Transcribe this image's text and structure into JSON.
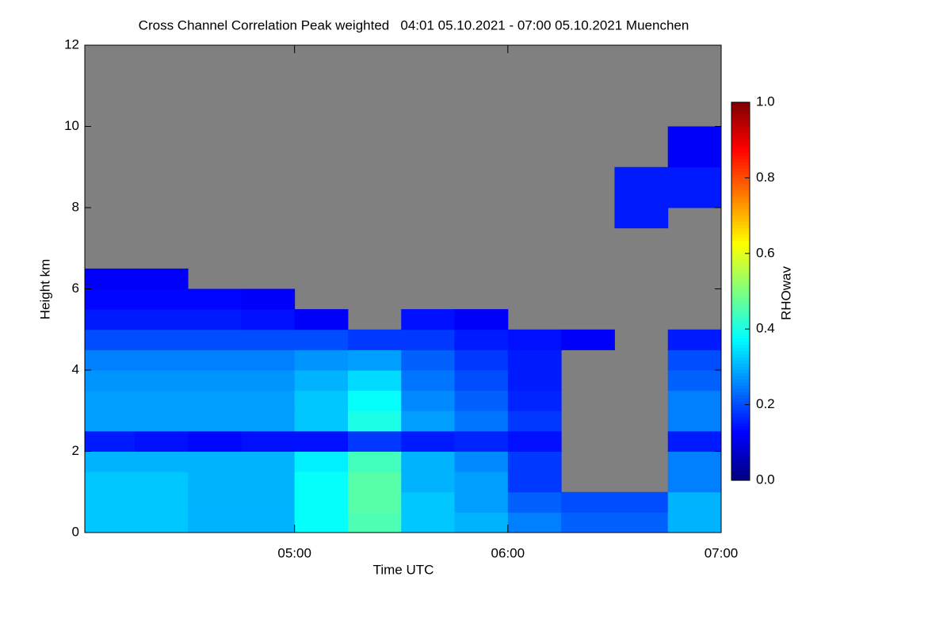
{
  "chart_data": {
    "type": "heatmap",
    "title": "Cross Channel Correlation Peak weighted   04:01 05.10.2021 - 07:00 05.10.2021 Muenchen",
    "x_label": "Time UTC",
    "y_label": "Height km",
    "colorbar_label": "RHOwav",
    "xlim": [
      4.0167,
      7.0
    ],
    "xticks": [
      {
        "value": 5,
        "label": "05:00"
      },
      {
        "value": 6,
        "label": "06:00"
      },
      {
        "value": 7,
        "label": "07:00"
      }
    ],
    "ylim": [
      0,
      12
    ],
    "yticks": [
      0,
      2,
      4,
      6,
      8,
      10,
      12
    ],
    "clim": [
      0,
      1
    ],
    "cticks": [
      {
        "value": 0,
        "label": "0.0"
      },
      0.2,
      0.4,
      0.6,
      0.8,
      {
        "value": 1,
        "label": "1.0"
      }
    ],
    "colormap": "jet",
    "missing_color": "#808080",
    "xbins": [
      4.0167,
      4.25,
      4.5,
      4.75,
      5.0,
      5.25,
      5.5,
      5.75,
      6.0,
      6.25,
      6.5,
      6.75,
      7.0
    ],
    "ybins": [
      0,
      0.5,
      1,
      1.5,
      2,
      2.5,
      3,
      3.5,
      4,
      4.5,
      5,
      5.5,
      6,
      6.5,
      7,
      7.5,
      8,
      9,
      10,
      11,
      12
    ],
    "z": [
      [
        0.32,
        0.32,
        0.3,
        0.3,
        0.38,
        0.45,
        0.32,
        0.3,
        0.25,
        0.22,
        0.22,
        0.3
      ],
      [
        0.32,
        0.32,
        0.3,
        0.3,
        0.38,
        0.46,
        0.32,
        0.28,
        0.22,
        0.2,
        0.2,
        0.3
      ],
      [
        0.32,
        0.32,
        0.3,
        0.3,
        0.38,
        0.46,
        0.3,
        0.28,
        0.18,
        null,
        null,
        0.25
      ],
      [
        0.3,
        0.3,
        0.3,
        0.3,
        0.36,
        0.44,
        0.3,
        0.26,
        0.18,
        null,
        null,
        0.25
      ],
      [
        0.15,
        0.14,
        0.13,
        0.14,
        0.14,
        0.18,
        0.15,
        0.16,
        0.14,
        null,
        null,
        0.15
      ],
      [
        0.28,
        0.28,
        0.28,
        0.28,
        0.32,
        0.4,
        0.28,
        0.24,
        0.18,
        null,
        null,
        0.25
      ],
      [
        0.28,
        0.28,
        0.28,
        0.28,
        0.32,
        0.38,
        0.26,
        0.22,
        0.16,
        null,
        null,
        0.25
      ],
      [
        0.27,
        0.27,
        0.27,
        0.27,
        0.3,
        0.34,
        0.24,
        0.2,
        0.15,
        null,
        null,
        0.22
      ],
      [
        0.25,
        0.25,
        0.25,
        0.25,
        0.27,
        0.28,
        0.22,
        0.18,
        0.15,
        null,
        null,
        0.2
      ],
      [
        0.2,
        0.2,
        0.2,
        0.2,
        0.2,
        0.18,
        0.18,
        0.15,
        0.14,
        0.12,
        null,
        0.15
      ],
      [
        0.15,
        0.15,
        0.15,
        0.14,
        0.12,
        null,
        0.14,
        0.12,
        null,
        null,
        null,
        null
      ],
      [
        0.13,
        0.13,
        0.13,
        0.12,
        null,
        null,
        null,
        null,
        null,
        null,
        null,
        null
      ],
      [
        0.12,
        0.12,
        null,
        null,
        null,
        null,
        null,
        null,
        null,
        null,
        null,
        null
      ],
      [
        null,
        null,
        null,
        null,
        null,
        null,
        null,
        null,
        null,
        null,
        null,
        null
      ],
      [
        null,
        null,
        null,
        null,
        null,
        null,
        null,
        null,
        null,
        null,
        null,
        null
      ],
      [
        null,
        null,
        null,
        null,
        null,
        null,
        null,
        null,
        null,
        null,
        0.15,
        null
      ],
      [
        null,
        null,
        null,
        null,
        null,
        null,
        null,
        null,
        null,
        null,
        0.15,
        0.15
      ],
      [
        null,
        null,
        null,
        null,
        null,
        null,
        null,
        null,
        null,
        null,
        null,
        0.12
      ],
      [
        null,
        null,
        null,
        null,
        null,
        null,
        null,
        null,
        null,
        null,
        null,
        null
      ],
      [
        null,
        null,
        null,
        null,
        null,
        null,
        null,
        null,
        null,
        null,
        null,
        null
      ]
    ]
  }
}
